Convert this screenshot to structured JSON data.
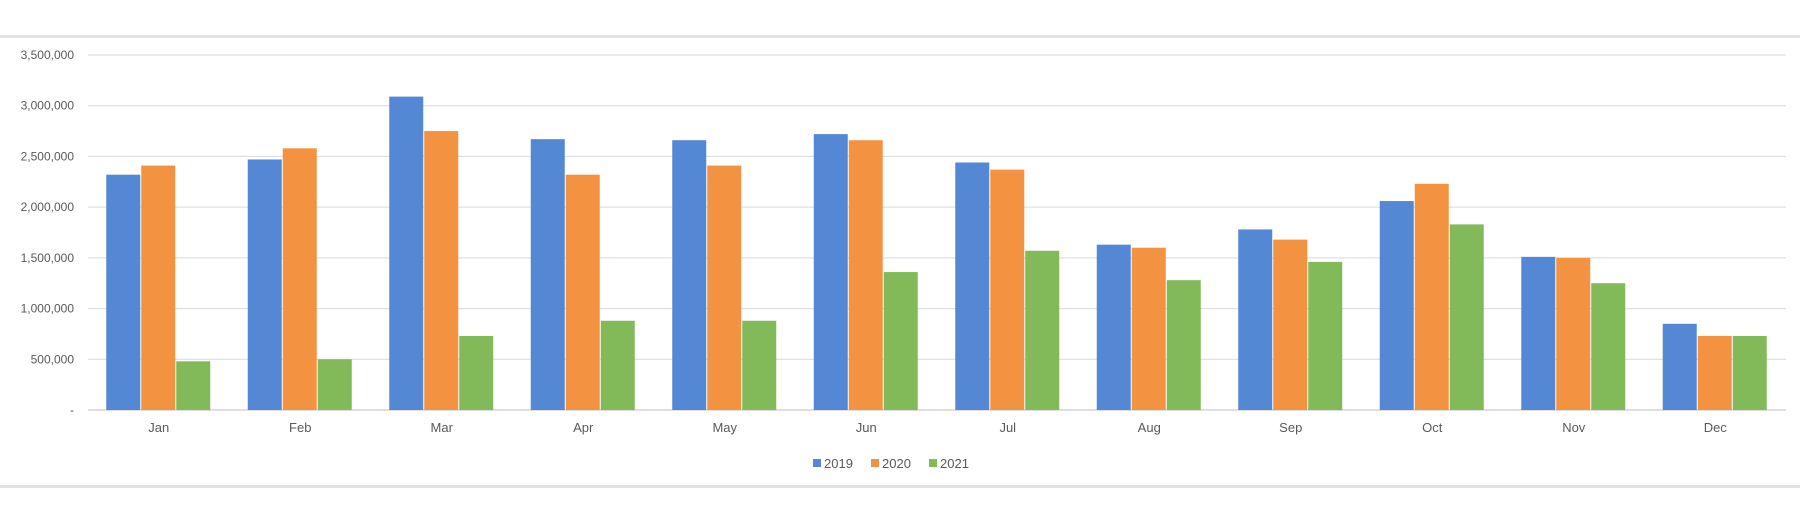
{
  "chart_data": {
    "type": "bar",
    "categories": [
      "Jan",
      "Feb",
      "Mar",
      "Apr",
      "May",
      "Jun",
      "Jul",
      "Aug",
      "Sep",
      "Oct",
      "Nov",
      "Dec"
    ],
    "series": [
      {
        "name": "2019",
        "color": "#5588d4",
        "values": [
          2320000,
          2470000,
          3090000,
          2670000,
          2660000,
          2720000,
          2440000,
          1630000,
          1780000,
          2060000,
          1510000,
          850000
        ]
      },
      {
        "name": "2020",
        "color": "#f39241",
        "values": [
          2410000,
          2580000,
          2750000,
          2320000,
          2410000,
          2660000,
          2370000,
          1600000,
          1680000,
          2230000,
          1500000,
          730000
        ]
      },
      {
        "name": "2021",
        "color": "#82ba5a",
        "values": [
          480000,
          500000,
          730000,
          880000,
          880000,
          1360000,
          1570000,
          1280000,
          1460000,
          1830000,
          1250000,
          730000
        ]
      }
    ],
    "ylim": [
      0,
      3500000
    ],
    "ytick_labels": [
      "-",
      "500,000",
      "1,000,000",
      "1,500,000",
      "2,000,000",
      "2,500,000",
      "3,000,000",
      "3,500,000"
    ],
    "ytick_step": 500000,
    "grid": true,
    "legend": "bottom-center"
  }
}
